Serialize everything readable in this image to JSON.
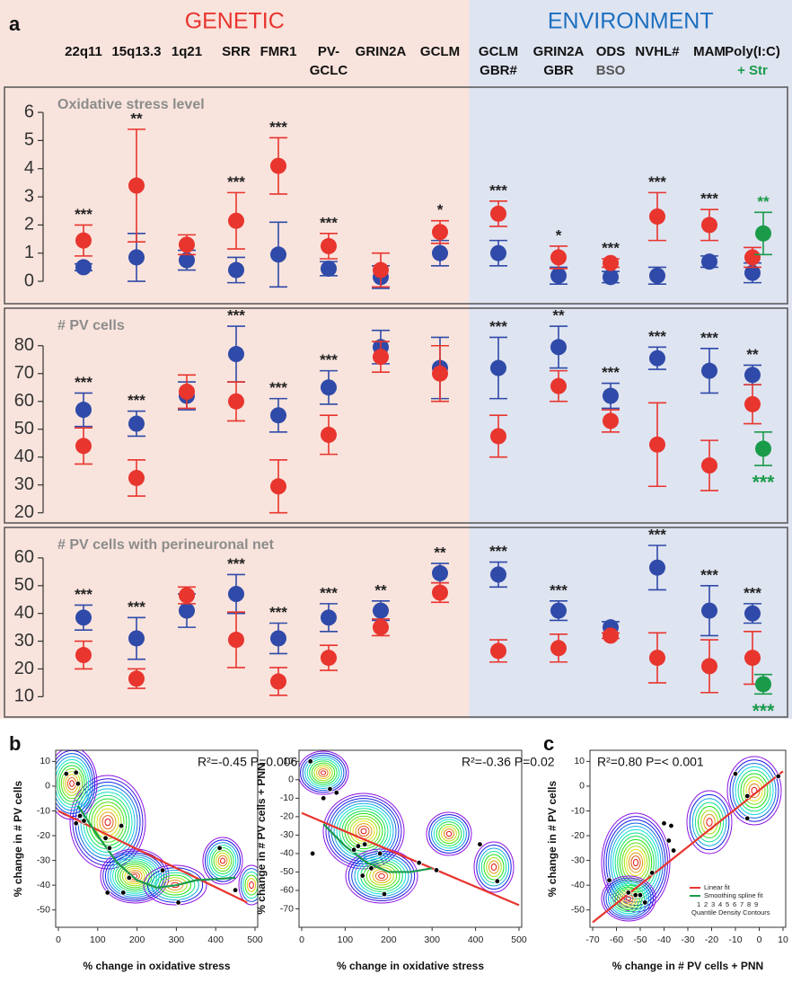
{
  "chart_data": [
    {
      "type": "dot_error",
      "panel_label": "a",
      "title": "Oxidative stress level",
      "groups": [
        {
          "label": "GENETIC",
          "color": "#e8352e",
          "background": "#f9e4dd",
          "count": 8
        },
        {
          "label": "ENVIRONMENT",
          "color": "#1b6fc0",
          "background": "#dfe4f1",
          "count": 6
        }
      ],
      "categories": [
        [
          "22q11"
        ],
        [
          "15q13.3"
        ],
        [
          "1q21"
        ],
        [
          "SRR"
        ],
        [
          "FMR1"
        ],
        [
          "PV-",
          "GCLC"
        ],
        [
          "GRIN2A"
        ],
        [
          "GCLM"
        ],
        [
          "GCLM",
          "GBR#"
        ],
        [
          "GRIN2A",
          "GBR"
        ],
        [
          "ODS",
          "BSO"
        ],
        [
          "NVHL#"
        ],
        [
          "MAM"
        ],
        [
          "Poly(I:C)",
          "+ Str"
        ]
      ],
      "ylim": [
        -0.7,
        6.8
      ],
      "yticks": [
        0,
        1,
        2,
        3,
        4,
        5,
        6
      ],
      "significance": [
        "***",
        "**",
        null,
        "***",
        "***",
        "***",
        null,
        "*",
        "***",
        "*",
        "***",
        "***",
        "***",
        null
      ],
      "series": [
        {
          "color": "#2f4aa8",
          "values": [
            0.5,
            0.85,
            0.75,
            0.4,
            0.95,
            0.45,
            0.15,
            1.0,
            1.0,
            0.2,
            0.15,
            0.2,
            0.7,
            0.3
          ],
          "errors": [
            0.12,
            0.85,
            0.35,
            0.45,
            1.15,
            0.25,
            0.4,
            0.45,
            0.45,
            0.3,
            0.2,
            0.3,
            0.2,
            0.35
          ]
        },
        {
          "color": "#e8352e",
          "values": [
            1.45,
            3.4,
            1.3,
            2.15,
            4.1,
            1.25,
            0.4,
            1.75,
            2.4,
            0.85,
            0.65,
            2.3,
            2.0,
            0.85
          ],
          "errors": [
            0.55,
            2.0,
            0.35,
            1.0,
            1.0,
            0.45,
            0.6,
            0.4,
            0.45,
            0.4,
            0.15,
            0.85,
            0.55,
            0.35
          ]
        },
        {
          "color": "#1a9b4a",
          "values": [
            null,
            null,
            null,
            null,
            null,
            null,
            null,
            null,
            null,
            null,
            null,
            null,
            null,
            1.7
          ],
          "errors": [
            null,
            null,
            null,
            null,
            null,
            null,
            null,
            null,
            null,
            null,
            null,
            null,
            null,
            0.75
          ],
          "significance": [
            null,
            null,
            null,
            null,
            null,
            null,
            null,
            null,
            null,
            null,
            null,
            null,
            null,
            "**"
          ],
          "significance_position": "above"
        }
      ]
    },
    {
      "type": "dot_error",
      "title": "# PV cells",
      "ylim": [
        17,
        92.5
      ],
      "yticks": [
        20,
        30,
        40,
        50,
        60,
        70,
        80
      ],
      "significance": [
        "***",
        "***",
        null,
        "***",
        "***",
        "***",
        null,
        null,
        "***",
        "**",
        "***",
        "***",
        "***",
        "**"
      ],
      "series": [
        {
          "color": "#2f4aa8",
          "values": [
            57,
            52,
            62,
            77,
            55,
            65,
            79.5,
            72,
            72,
            79.5,
            62,
            75.5,
            71,
            69.5
          ],
          "errors": [
            6,
            4.5,
            5,
            10,
            6,
            6,
            6,
            11,
            11,
            7.5,
            4.5,
            4,
            8,
            3.5
          ]
        },
        {
          "color": "#e8352e",
          "values": [
            44,
            32.5,
            63.5,
            60,
            29.5,
            48,
            76,
            70,
            47.5,
            65.5,
            53,
            44.5,
            37,
            59
          ],
          "errors": [
            6.5,
            6.5,
            6,
            7,
            9.5,
            7,
            5.5,
            10,
            7.5,
            5.5,
            4,
            15,
            9,
            7
          ]
        },
        {
          "color": "#1a9b4a",
          "values": [
            null,
            null,
            null,
            null,
            null,
            null,
            null,
            null,
            null,
            null,
            null,
            null,
            null,
            43
          ],
          "errors": [
            null,
            null,
            null,
            null,
            null,
            null,
            null,
            null,
            null,
            null,
            null,
            null,
            null,
            6
          ],
          "significance": [
            null,
            null,
            null,
            null,
            null,
            null,
            null,
            null,
            null,
            null,
            null,
            null,
            null,
            "***"
          ],
          "significance_position": "below"
        }
      ]
    },
    {
      "type": "dot_error",
      "title": "# PV cells with perineuronal net",
      "ylim": [
        3,
        70
      ],
      "yticks": [
        10,
        20,
        30,
        40,
        50,
        60
      ],
      "significance": [
        "***",
        "***",
        null,
        "***",
        "***",
        "***",
        "**",
        "**",
        "***",
        "***",
        null,
        "***",
        "***",
        "***"
      ],
      "series": [
        {
          "color": "#2f4aa8",
          "values": [
            38.5,
            31,
            41,
            47,
            31,
            38.5,
            41,
            54.5,
            54,
            41,
            35,
            56.5,
            41,
            40
          ],
          "errors": [
            4.5,
            7.5,
            6,
            7,
            5.5,
            5,
            3.5,
            3.5,
            4.5,
            3.5,
            2,
            8,
            9,
            3.5
          ]
        },
        {
          "color": "#e8352e",
          "values": [
            25,
            16.5,
            46.5,
            30.5,
            15.5,
            24,
            35,
            47.5,
            26.5,
            27.5,
            32,
            24,
            21,
            24
          ],
          "errors": [
            5,
            3.5,
            3,
            10,
            5,
            4.5,
            3,
            3.5,
            4,
            5,
            1,
            9,
            9.5,
            9.5
          ]
        },
        {
          "color": "#1a9b4a",
          "values": [
            null,
            null,
            null,
            null,
            null,
            null,
            null,
            null,
            null,
            null,
            null,
            null,
            null,
            14.5
          ],
          "errors": [
            null,
            null,
            null,
            null,
            null,
            null,
            null,
            null,
            null,
            null,
            null,
            null,
            null,
            3.5
          ],
          "significance": [
            null,
            null,
            null,
            null,
            null,
            null,
            null,
            null,
            null,
            null,
            null,
            null,
            null,
            "***"
          ],
          "significance_position": "below"
        }
      ]
    },
    {
      "type": "density_scatter",
      "panel_label": "b",
      "annotation": "R²=-0.45 P=0.006",
      "xlabel": "% change in oxidative stress",
      "ylabel": "% change in # PV cells",
      "xlim": [
        0,
        500
      ],
      "ylim": [
        -57,
        14.5
      ],
      "xticks": [
        0,
        100,
        200,
        300,
        400,
        500
      ],
      "yticks": [
        10,
        0,
        -10,
        -20,
        -30,
        -40,
        -50
      ],
      "points": {
        "x": [
          20,
          45,
          50,
          55,
          65,
          45,
          120,
          130,
          160,
          180,
          125,
          165,
          305,
          265,
          410,
          450
        ],
        "y": [
          5,
          5.5,
          1,
          -12,
          -14,
          -15,
          -21,
          -25,
          -16,
          -37,
          -43,
          -43,
          -47,
          -34,
          -25,
          -42
        ]
      },
      "series": [
        {
          "color": "#e8352e",
          "x": [
            0,
            480
          ],
          "y": [
            -10,
            -47
          ]
        },
        {
          "color": "#1a9b4a",
          "x": [
            50,
            100,
            150,
            200,
            250,
            300,
            350,
            450
          ],
          "y": [
            -8,
            -20,
            -31,
            -38,
            -41,
            -40,
            -38,
            -37
          ]
        }
      ]
    },
    {
      "type": "density_scatter",
      "annotation": "R²=-0.36 P=0.02",
      "xlabel": "% change in oxidative stress",
      "ylabel": "% change in # PV cells + PNN",
      "xlim": [
        0,
        500
      ],
      "ylim": [
        -80,
        16
      ],
      "xticks": [
        0,
        100,
        200,
        300,
        400,
        500
      ],
      "yticks": [
        10,
        0,
        -10,
        -20,
        -30,
        -40,
        -50,
        -60,
        -70
      ],
      "points": {
        "x": [
          20,
          50,
          65,
          80,
          120,
          130,
          145,
          160,
          190,
          180,
          140,
          270,
          310,
          410,
          450,
          25
        ],
        "y": [
          10,
          -10,
          -5,
          -7,
          -38,
          -36,
          -35,
          -48,
          -62,
          -40,
          -52,
          -45,
          -49,
          -35,
          -55,
          -40
        ]
      },
      "series": [
        {
          "color": "#e8352e",
          "x": [
            0,
            500
          ],
          "y": [
            -18,
            -68
          ]
        },
        {
          "color": "#1a9b4a",
          "x": [
            50,
            100,
            150,
            200,
            250,
            300
          ],
          "y": [
            -24,
            -36,
            -45,
            -50,
            -50,
            -48
          ]
        }
      ]
    },
    {
      "type": "density_scatter",
      "panel_label": "c",
      "annotation": "R²=0.80 P=< 0.001",
      "xlabel": "% change in # PV cells + PNN",
      "ylabel": "% change in # PV cells",
      "xlim": [
        -70,
        10
      ],
      "ylim": [
        -57,
        14.5
      ],
      "xticks": [
        -70,
        -60,
        -50,
        -40,
        -30,
        -20,
        -10,
        0,
        10
      ],
      "yticks": [
        10,
        0,
        -10,
        -20,
        -30,
        -40,
        -50
      ],
      "points": {
        "x": [
          -63,
          -55,
          -52,
          -50,
          -48,
          -45,
          -40,
          -38,
          -37,
          -36,
          -10,
          -5,
          -5,
          8
        ],
        "y": [
          -38,
          -43,
          -44,
          -44,
          -47,
          -35,
          -15,
          -22,
          -16,
          -26,
          5,
          -4,
          -13,
          4
        ]
      },
      "series": [
        {
          "name": "Linear fit",
          "color": "#e8352e",
          "x": [
            -70,
            10
          ],
          "y": [
            -55,
            6
          ]
        },
        {
          "name": "Smoothing spline fit",
          "color": "#1a9b4a"
        }
      ],
      "contour_legend": {
        "title": "Quantile Density Contours",
        "levels": [
          1,
          2,
          3,
          4,
          5,
          6,
          7,
          8,
          9
        ]
      }
    }
  ]
}
